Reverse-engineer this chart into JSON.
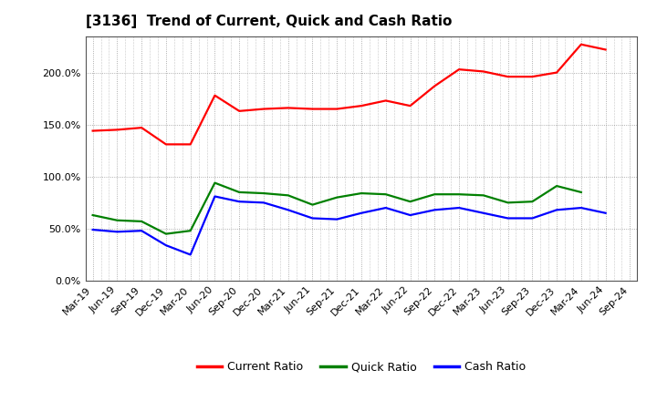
{
  "title": "[3136]  Trend of Current, Quick and Cash Ratio",
  "x_labels": [
    "Mar-19",
    "Jun-19",
    "Sep-19",
    "Dec-19",
    "Mar-20",
    "Jun-20",
    "Sep-20",
    "Dec-20",
    "Mar-21",
    "Jun-21",
    "Sep-21",
    "Dec-21",
    "Mar-22",
    "Jun-22",
    "Sep-22",
    "Dec-22",
    "Mar-23",
    "Jun-23",
    "Sep-23",
    "Dec-23",
    "Mar-24",
    "Jun-24",
    "Sep-24"
  ],
  "current_ratio": [
    144,
    145,
    147,
    131,
    131,
    178,
    163,
    165,
    166,
    165,
    165,
    168,
    173,
    168,
    187,
    203,
    201,
    196,
    196,
    200,
    227,
    222,
    null
  ],
  "quick_ratio": [
    63,
    58,
    57,
    45,
    48,
    94,
    85,
    84,
    82,
    73,
    80,
    84,
    83,
    76,
    83,
    83,
    82,
    75,
    76,
    91,
    85,
    null,
    null
  ],
  "cash_ratio": [
    49,
    47,
    48,
    34,
    25,
    81,
    76,
    75,
    68,
    60,
    59,
    65,
    70,
    63,
    68,
    70,
    65,
    60,
    60,
    68,
    70,
    65,
    null
  ],
  "current_color": "#ff0000",
  "quick_color": "#008000",
  "cash_color": "#0000ff",
  "bg_color": "#ffffff",
  "plot_bg_color": "#ffffff",
  "ylim": [
    0,
    235
  ],
  "yticks": [
    0,
    50,
    100,
    150,
    200
  ],
  "ytick_labels": [
    "0.0%",
    "50.0%",
    "100.0%",
    "150.0%",
    "200.0%"
  ],
  "grid_color": "#999999",
  "line_width": 1.6,
  "legend_labels": [
    "Current Ratio",
    "Quick Ratio",
    "Cash Ratio"
  ],
  "title_fontsize": 11,
  "tick_fontsize": 8,
  "legend_fontsize": 9
}
